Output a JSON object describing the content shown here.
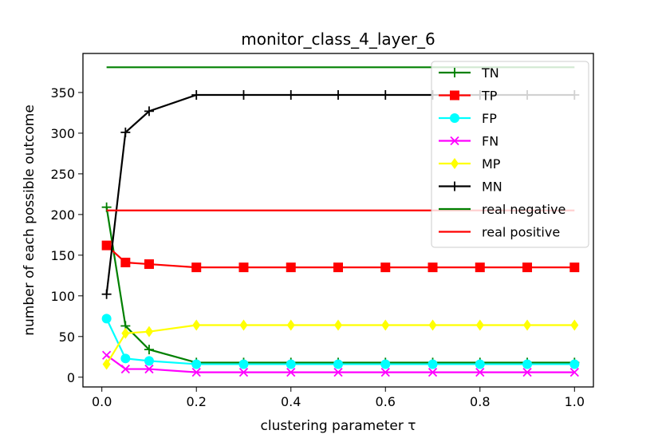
{
  "chart_data": {
    "type": "line",
    "title": "monitor_class_4_layer_6",
    "xlabel": "clustering parameter τ",
    "ylabel": "number of each possible outcome",
    "xlim": [
      -0.04,
      1.04
    ],
    "ylim": [
      -12,
      398
    ],
    "xticks": [
      "0.0",
      "0.2",
      "0.4",
      "0.6",
      "0.8",
      "1.0"
    ],
    "yticks": [
      "0",
      "50",
      "100",
      "150",
      "200",
      "250",
      "300",
      "350"
    ],
    "x": [
      0.01,
      0.05,
      0.1,
      0.2,
      0.3,
      0.4,
      0.5,
      0.6,
      0.7,
      0.8,
      0.9,
      1.0
    ],
    "legend_position": "upper right",
    "grid": false,
    "series": [
      {
        "name": "TN",
        "color": "#008000",
        "marker": "plus",
        "values": [
          209,
          63,
          34,
          18,
          18,
          18,
          18,
          18,
          18,
          18,
          18,
          18
        ]
      },
      {
        "name": "TP",
        "color": "#ff0000",
        "marker": "square",
        "values": [
          162,
          141,
          139,
          135,
          135,
          135,
          135,
          135,
          135,
          135,
          135,
          135
        ]
      },
      {
        "name": "FP",
        "color": "#00ffff",
        "marker": "circle",
        "values": [
          72,
          23,
          20,
          16,
          16,
          16,
          16,
          16,
          16,
          16,
          16,
          16
        ]
      },
      {
        "name": "FN",
        "color": "#ff00ff",
        "marker": "x",
        "values": [
          27,
          10,
          10,
          6,
          6,
          6,
          6,
          6,
          6,
          6,
          6,
          6
        ]
      },
      {
        "name": "MP",
        "color": "#ffff00",
        "marker": "diamond",
        "values": [
          16,
          54,
          56,
          64,
          64,
          64,
          64,
          64,
          64,
          64,
          64,
          64
        ]
      },
      {
        "name": "MN",
        "color": "#000000",
        "marker": "plus",
        "values": [
          102,
          301,
          327,
          347,
          347,
          347,
          347,
          347,
          347,
          347,
          347,
          347
        ]
      },
      {
        "name": "real negative",
        "color": "#008000",
        "marker": "none",
        "values": [
          381,
          381,
          381,
          381,
          381,
          381,
          381,
          381,
          381,
          381,
          381,
          381
        ]
      },
      {
        "name": "real positive",
        "color": "#ff0000",
        "marker": "none",
        "values": [
          205,
          205,
          205,
          205,
          205,
          205,
          205,
          205,
          205,
          205,
          205,
          205
        ]
      }
    ]
  }
}
